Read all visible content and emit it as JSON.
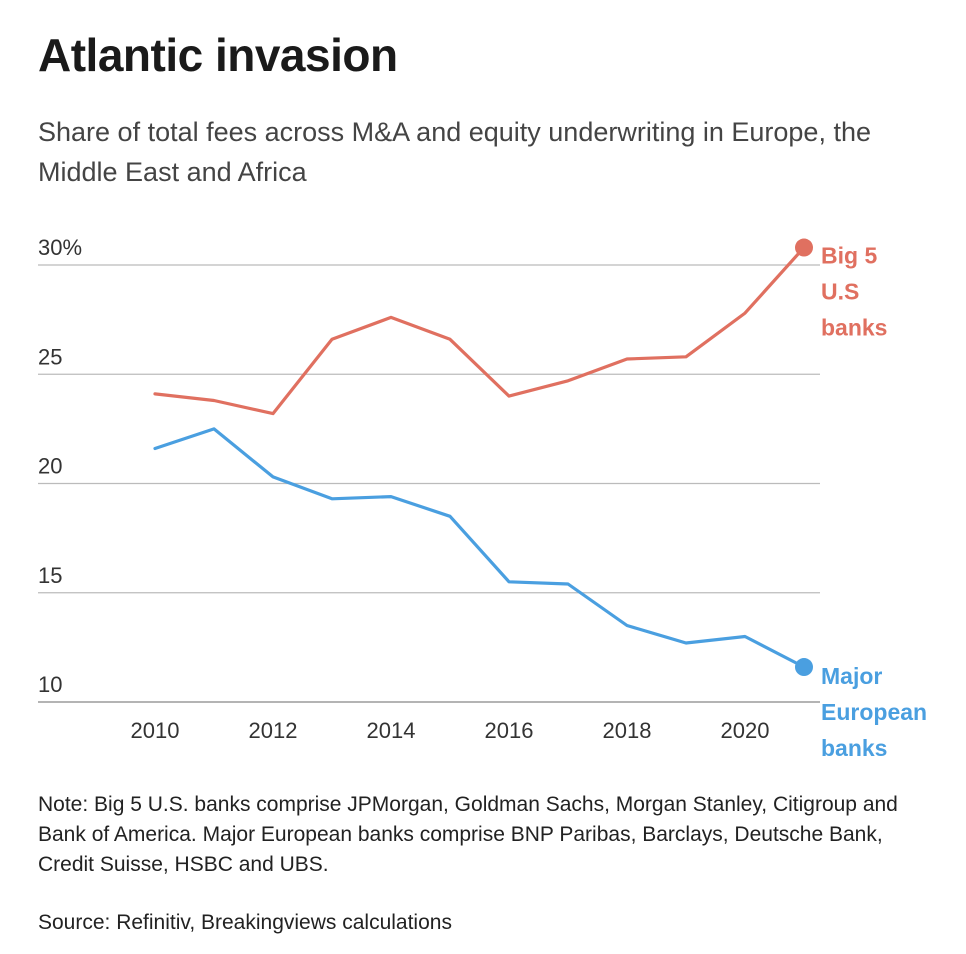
{
  "header": {
    "title": "Atlantic invasion",
    "subtitle": "Share of total fees across M&A and equity underwriting in Europe, the Middle East and Africa"
  },
  "chart_data": {
    "type": "line",
    "x": [
      2010,
      2011,
      2012,
      2013,
      2014,
      2015,
      2016,
      2017,
      2018,
      2019,
      2020,
      2021
    ],
    "series": [
      {
        "name": "Big 5 U.S banks",
        "label_lines": [
          "Big 5",
          "U.S",
          "banks"
        ],
        "color": "#e07060",
        "values": [
          24.1,
          23.8,
          23.2,
          26.6,
          27.6,
          26.6,
          24.0,
          24.7,
          25.7,
          25.8,
          27.8,
          30.8
        ]
      },
      {
        "name": "Major European banks",
        "label_lines": [
          "Major",
          "European",
          "banks"
        ],
        "color": "#4a9fe0",
        "values": [
          21.6,
          22.5,
          20.3,
          19.3,
          19.4,
          18.5,
          15.5,
          15.4,
          13.5,
          12.7,
          13.0,
          11.6
        ]
      }
    ],
    "y_ticks": [
      10,
      15,
      20,
      25,
      30
    ],
    "y_tick_labels": [
      "10",
      "15",
      "20",
      "25",
      "30%"
    ],
    "x_ticks": [
      2010,
      2012,
      2014,
      2016,
      2018,
      2020
    ],
    "x_tick_labels": [
      "2010",
      "2012",
      "2014",
      "2016",
      "2018",
      "2020"
    ],
    "ylim": [
      10,
      30
    ],
    "xlim": [
      2010,
      2021
    ],
    "grid": "horizontal",
    "legend": "direct labels at line ends (right)",
    "end_markers": true
  },
  "footer": {
    "note": "Note: Big 5 U.S. banks comprise JPMorgan, Goldman Sachs, Morgan Stanley, Citigroup and Bank of America. Major European banks comprise BNP Paribas, Barclays, Deutsche Bank, Credit Suisse, HSBC and UBS.",
    "source": "Source: Refinitiv, Breakingviews calculations"
  },
  "colors": {
    "gridline": "#bbbbbb",
    "axis_text": "#333333"
  }
}
